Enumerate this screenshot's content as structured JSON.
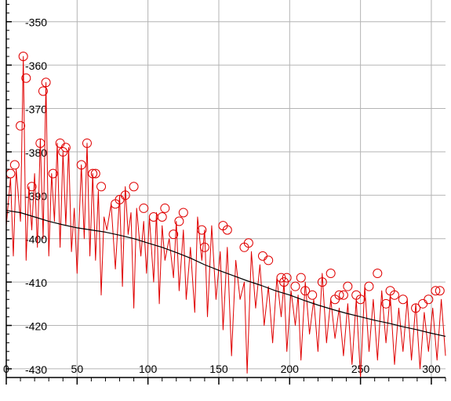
{
  "chart_data": {
    "type": "line",
    "title": "",
    "xlabel": "",
    "ylabel": "",
    "xlim": [
      0,
      310
    ],
    "ylim": [
      -432,
      -345
    ],
    "x_ticks": [
      0,
      50,
      100,
      150,
      200,
      250,
      300
    ],
    "x_tick_labels": [
      "0",
      "50",
      "100",
      "150",
      "200",
      "250",
      "300"
    ],
    "y_ticks": [
      -350,
      -360,
      -370,
      -380,
      -390,
      -400,
      -410,
      -420,
      -430
    ],
    "y_tick_labels": [
      "-350",
      "-360",
      "-370",
      "-380",
      "-390",
      "-400",
      "-410",
      "-420",
      "-430"
    ],
    "grid": true,
    "colors": {
      "spectrum": "#e00000",
      "trend": "#000000",
      "peak_marker": "#e00000",
      "grid": "#b4b4b4"
    },
    "series": [
      {
        "style": "spectrum",
        "x": [
          0,
          3,
          5,
          7,
          10,
          12,
          14,
          16,
          18,
          20,
          22,
          24,
          26,
          28,
          30,
          32,
          34,
          36,
          38,
          40,
          42,
          44,
          46,
          48,
          50,
          53,
          55,
          57,
          59,
          61,
          63,
          65,
          67,
          69,
          71,
          74,
          77,
          80,
          82,
          84,
          86,
          88,
          90,
          92,
          95,
          97,
          99,
          101,
          104,
          106,
          108,
          110,
          112,
          115,
          118,
          120,
          122,
          125,
          127,
          130,
          133,
          135,
          138,
          140,
          142,
          145,
          148,
          151,
          153,
          156,
          159,
          162,
          165,
          168,
          170,
          173,
          176,
          179,
          182,
          185,
          188,
          191,
          194,
          196,
          198,
          201,
          204,
          206,
          208,
          211,
          214,
          217,
          220,
          223,
          226,
          229,
          232,
          235,
          238,
          241,
          244,
          247,
          250,
          253,
          256,
          259,
          262,
          265,
          268,
          271,
          274,
          277,
          280,
          283,
          286,
          289,
          292,
          295,
          298,
          301,
          304,
          307,
          310
        ],
        "y": [
          -397,
          -386,
          -404,
          -384,
          -396,
          -358,
          -405,
          -388,
          -398,
          -385,
          -402,
          -377,
          -400,
          -364,
          -404,
          -385,
          -396,
          -378,
          -402,
          -380,
          -397,
          -379,
          -403,
          -393,
          -408,
          -383,
          -400,
          -378,
          -404,
          -385,
          -405,
          -389,
          -413,
          -395,
          -398,
          -392,
          -407,
          -390,
          -411,
          -388,
          -399,
          -394,
          -416,
          -393,
          -404,
          -396,
          -408,
          -395,
          -410,
          -394,
          -415,
          -397,
          -405,
          -400,
          -409,
          -396,
          -412,
          -398,
          -414,
          -402,
          -417,
          -395,
          -405,
          -398,
          -418,
          -397,
          -414,
          -403,
          -421,
          -402,
          -427,
          -405,
          -414,
          -410,
          -431,
          -403,
          -416,
          -406,
          -420,
          -411,
          -424,
          -409,
          -418,
          -410,
          -426,
          -412,
          -420,
          -413,
          -428,
          -410,
          -422,
          -414,
          -426,
          -408,
          -424,
          -414,
          -423,
          -416,
          -427,
          -415,
          -429,
          -414,
          -432,
          -411,
          -426,
          -414,
          -428,
          -412,
          -424,
          -413,
          -429,
          -416,
          -426,
          -414,
          -428,
          -415,
          -430,
          -417,
          -426,
          -416,
          -428,
          -414,
          -427
        ]
      },
      {
        "style": "trend",
        "x": [
          0,
          10,
          20,
          30,
          40,
          50,
          60,
          70,
          80,
          90,
          100,
          110,
          120,
          130,
          140,
          150,
          160,
          170,
          180,
          190,
          200,
          210,
          220,
          230,
          240,
          250,
          260,
          270,
          280,
          290,
          300,
          310
        ],
        "y": [
          -393.5,
          -394,
          -395,
          -396,
          -396.8,
          -397.5,
          -398,
          -398.5,
          -399.2,
          -400,
          -401,
          -402,
          -403.2,
          -404.5,
          -406,
          -407.3,
          -408.5,
          -409.7,
          -410.8,
          -412,
          -413,
          -414.2,
          -415.3,
          -416.3,
          -417.2,
          -418,
          -418.8,
          -419.5,
          -420.3,
          -421,
          -421.8,
          -422.5
        ]
      }
    ],
    "peaks": {
      "x": [
        3,
        6,
        10,
        12,
        14,
        18,
        24,
        26,
        28,
        33,
        38,
        40,
        42,
        53,
        57,
        61,
        63,
        67,
        77,
        80,
        84,
        90,
        97,
        104,
        110,
        112,
        118,
        122,
        125,
        138,
        140,
        153,
        156,
        168,
        171,
        181,
        185,
        194,
        196,
        198,
        204,
        208,
        211,
        216,
        223,
        229,
        232,
        235,
        238,
        241,
        247,
        250,
        256,
        262,
        268,
        271,
        274,
        280,
        289,
        294,
        298,
        303,
        306
      ],
      "y": [
        -385,
        -383,
        -374,
        -358,
        -363,
        -388,
        -378,
        -366,
        -364,
        -385,
        -378,
        -380,
        -379,
        -383,
        -378,
        -385,
        -385,
        -388,
        -392,
        -391,
        -390,
        -388,
        -393,
        -395,
        -395,
        -393,
        -399,
        -396,
        -394,
        -398,
        -402,
        -397,
        -398,
        -402,
        -401,
        -404,
        -405,
        -409,
        -410,
        -409,
        -411,
        -409,
        -412,
        -413,
        -410,
        -408,
        -414,
        -413,
        -413,
        -411,
        -413,
        -414,
        -411,
        -408,
        -415,
        -412,
        -413,
        -414,
        -416,
        -415,
        -414,
        -412,
        -412
      ]
    }
  }
}
